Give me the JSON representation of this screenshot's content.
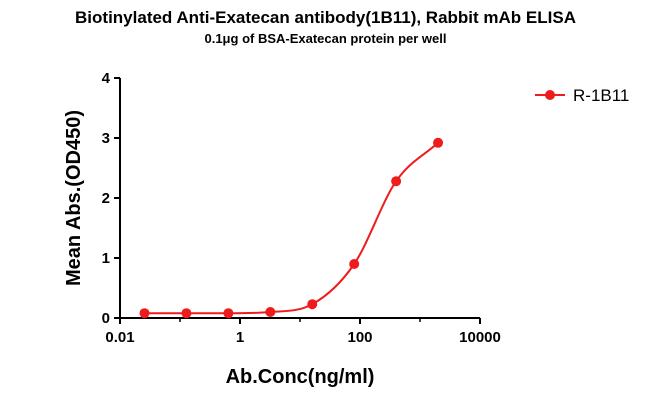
{
  "chart_data": {
    "type": "scatter",
    "title": "Biotinylated Anti-Exatecan antibody(1B11), Rabbit mAb ELISA",
    "subtitle": "0.1μg of BSA-Exatecan protein per well",
    "xlabel": "Ab.Conc(ng/ml)",
    "ylabel": "Mean Abs.(OD450)",
    "xscale": "log",
    "xlim": [
      0.01,
      10000
    ],
    "ylim": [
      0,
      4
    ],
    "x_ticks": [
      "0.01",
      "1",
      "100",
      "10000"
    ],
    "y_ticks": [
      "0",
      "1",
      "2",
      "3",
      "4"
    ],
    "grid": false,
    "legend_position": "top-right",
    "color": "#ee1c1c",
    "series": [
      {
        "name": "R-1B11",
        "x": [
          0.0256,
          0.128,
          0.64,
          3.2,
          16,
          80,
          400,
          2000
        ],
        "y": [
          0.08,
          0.08,
          0.08,
          0.1,
          0.23,
          0.9,
          2.28,
          2.92
        ]
      }
    ]
  }
}
